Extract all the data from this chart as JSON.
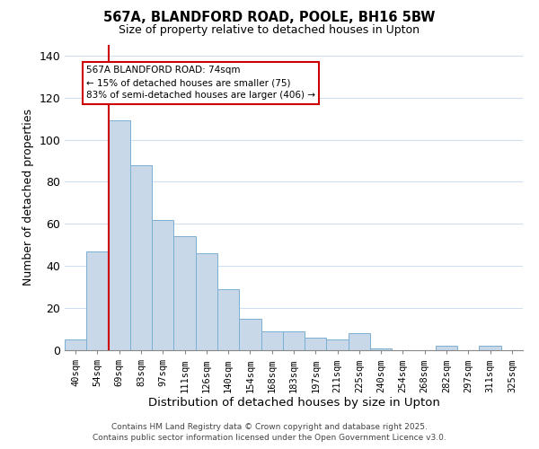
{
  "title": "567A, BLANDFORD ROAD, POOLE, BH16 5BW",
  "subtitle": "Size of property relative to detached houses in Upton",
  "xlabel": "Distribution of detached houses by size in Upton",
  "ylabel": "Number of detached properties",
  "bin_labels": [
    "40sqm",
    "54sqm",
    "69sqm",
    "83sqm",
    "97sqm",
    "111sqm",
    "126sqm",
    "140sqm",
    "154sqm",
    "168sqm",
    "183sqm",
    "197sqm",
    "211sqm",
    "225sqm",
    "240sqm",
    "254sqm",
    "268sqm",
    "282sqm",
    "297sqm",
    "311sqm",
    "325sqm"
  ],
  "bar_values": [
    5,
    47,
    109,
    88,
    62,
    54,
    46,
    29,
    15,
    9,
    9,
    6,
    5,
    8,
    1,
    0,
    0,
    2,
    0,
    2,
    0
  ],
  "bar_color": "#c8d8e8",
  "bar_edge_color": "#7bafd4",
  "vline_x_index": 2,
  "vline_color": "#cc0000",
  "ylim": [
    0,
    145
  ],
  "yticks": [
    0,
    20,
    40,
    60,
    80,
    100,
    120,
    140
  ],
  "annotation_title": "567A BLANDFORD ROAD: 74sqm",
  "annotation_line1": "← 15% of detached houses are smaller (75)",
  "annotation_line2": "83% of semi-detached houses are larger (406) →",
  "footer1": "Contains HM Land Registry data © Crown copyright and database right 2025.",
  "footer2": "Contains public sector information licensed under the Open Government Licence v3.0.",
  "background_color": "#ffffff",
  "grid_color": "#d0dff0"
}
